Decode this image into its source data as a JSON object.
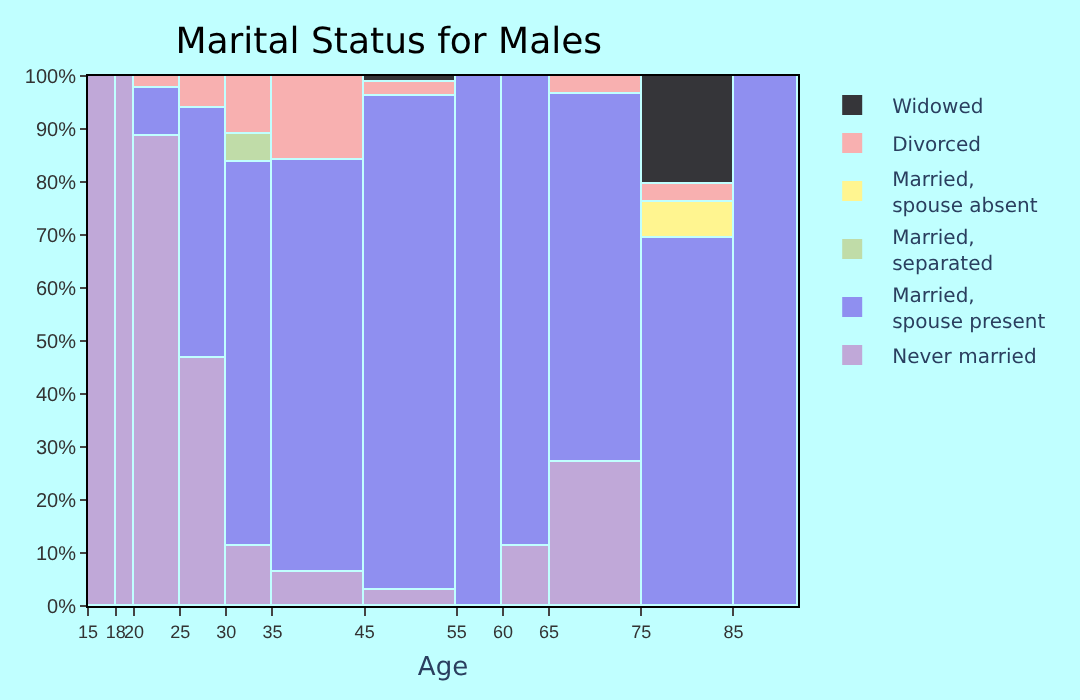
{
  "chart_data": {
    "type": "bar",
    "stacked": true,
    "title": "Marital Status for Males",
    "xlabel": "Age",
    "x": [
      16.5,
      19,
      22.5,
      27.5,
      32.5,
      40,
      50,
      57.5,
      62.5,
      70,
      80,
      88.5
    ],
    "series": [
      {
        "name": "Never married",
        "color": "#c0a8d8",
        "values": [
          100,
          100,
          88.8,
          46.9,
          11.4,
          6.6,
          2.9,
          0,
          11.4,
          27.1,
          0,
          0
        ]
      },
      {
        "name": "Married,\nspouse present",
        "color": "#8f8ff0",
        "values": [
          0,
          0,
          8.8,
          47.0,
          72.2,
          77.4,
          93.2,
          100,
          88.6,
          69.4,
          69.3,
          100
        ]
      },
      {
        "name": "Married,\nseparated",
        "color": "#c0dca8",
        "values": [
          0,
          0,
          0,
          0,
          5.5,
          0,
          0,
          0,
          0,
          0,
          0,
          0
        ]
      },
      {
        "name": "Married,\nspouse absent",
        "color": "#fff590",
        "values": [
          0,
          0,
          0,
          0,
          0,
          0,
          0,
          0,
          0,
          0,
          7.0,
          0
        ]
      },
      {
        "name": "Divorced",
        "color": "#f8b0b0",
        "values": [
          0,
          0,
          2.4,
          6.1,
          10.9,
          16.0,
          2.9,
          0,
          0,
          3.5,
          3.3,
          0
        ]
      },
      {
        "name": "Widowed",
        "color": "#353539",
        "values": [
          0,
          0,
          0,
          0,
          0,
          0,
          1.0,
          0,
          0,
          0,
          20.4,
          0
        ]
      }
    ],
    "xlim": [
      15,
      92
    ],
    "xticks": [
      15,
      18,
      20,
      25,
      30,
      35,
      45,
      55,
      60,
      65,
      75,
      85
    ],
    "ylim": [
      0,
      100
    ],
    "yticks": [
      {
        "value": 0,
        "label": "0%"
      },
      {
        "value": 10,
        "label": "10%"
      },
      {
        "value": 20,
        "label": "20%"
      },
      {
        "value": 30,
        "label": "30%"
      },
      {
        "value": 40,
        "label": "40%"
      },
      {
        "value": 50,
        "label": "50%"
      },
      {
        "value": 60,
        "label": "60%"
      },
      {
        "value": 70,
        "label": "70%"
      },
      {
        "value": 80,
        "label": "80%"
      },
      {
        "value": 90,
        "label": "90%"
      },
      {
        "value": 100,
        "label": "100%"
      }
    ],
    "legend": "right"
  }
}
